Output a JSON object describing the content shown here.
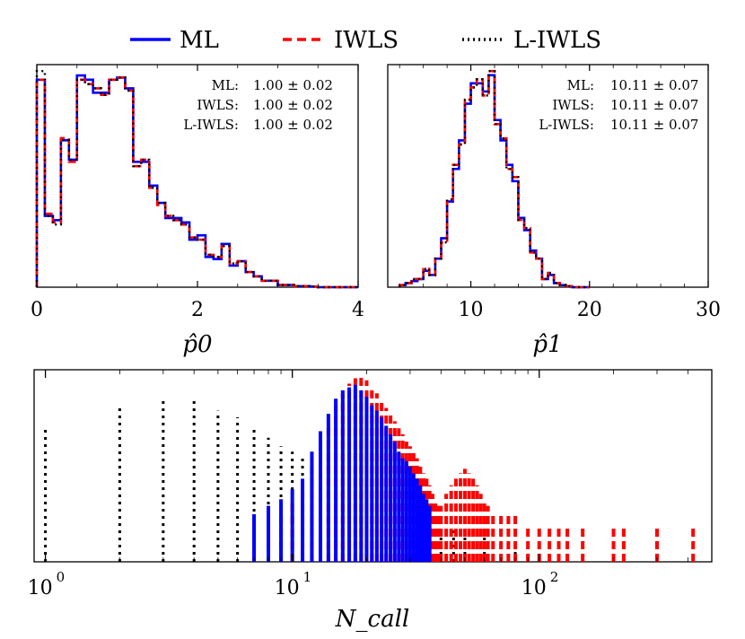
{
  "legend": [
    {
      "name": "ML",
      "color": "#0000ff",
      "dash": "solid"
    },
    {
      "name": "IWLS",
      "color": "#ff0000",
      "dash": "dashed"
    },
    {
      "name": "L-IWLS",
      "color": "#000000",
      "dash": "dotted"
    }
  ],
  "chart_data": [
    {
      "type": "histogram",
      "xlabel": "p̂0",
      "xlim": [
        0,
        4
      ],
      "xticks": [
        "0",
        "2",
        "4"
      ],
      "xtick_values": [
        0,
        2,
        4
      ],
      "stats": [
        {
          "label": "ML:",
          "value": "1.00 ± 0.02"
        },
        {
          "label": "IWLS:",
          "value": "1.00 ± 0.02"
        },
        {
          "label": "L-IWLS:",
          "value": "1.00 ± 0.02"
        }
      ],
      "bin_width": 0.1,
      "series": [
        {
          "name": "ML",
          "values": [
            96,
            33,
            31,
            68,
            59,
            98,
            96,
            90,
            90,
            96,
            97,
            92,
            58,
            58,
            47,
            39,
            32,
            32,
            30,
            22,
            24,
            14,
            13,
            20,
            10,
            12,
            7,
            5,
            3,
            3,
            1,
            1,
            0.5,
            0.5,
            0.3,
            0,
            0,
            0,
            0,
            0
          ]
        },
        {
          "name": "IWLS",
          "values": [
            96,
            34,
            30,
            69,
            58,
            96,
            94,
            92,
            89,
            96,
            97,
            91,
            56,
            59,
            46,
            38,
            33,
            31,
            29,
            23,
            22,
            15,
            14,
            19,
            11,
            12,
            7,
            5,
            3,
            3,
            1,
            1,
            0.5,
            0.5,
            0.3,
            0,
            0,
            0,
            0,
            0
          ]
        },
        {
          "name": "L-IWLS",
          "values": [
            100,
            33,
            29,
            68,
            59,
            96,
            94,
            92,
            89,
            96,
            97,
            91,
            56,
            59,
            46,
            39,
            33,
            31,
            29,
            23,
            22,
            15,
            14,
            19,
            11,
            12,
            7,
            5,
            3,
            3,
            1,
            1,
            0.5,
            0.5,
            0.3,
            0,
            0,
            0,
            0,
            0
          ]
        }
      ]
    },
    {
      "type": "histogram",
      "xlabel": "p̂1",
      "xlim": [
        3,
        30
      ],
      "xticks": [
        "10",
        "20",
        "30"
      ],
      "xtick_values": [
        10,
        20,
        30
      ],
      "stats": [
        {
          "label": "ML:",
          "value": "10.11 ± 0.07"
        },
        {
          "label": "IWLS:",
          "value": "10.11 ± 0.07"
        },
        {
          "label": "L-IWLS:",
          "value": "10.11 ± 0.07"
        }
      ],
      "bin_start": 4,
      "bin_width": 0.5,
      "series": [
        {
          "name": "ML",
          "values": [
            1,
            2,
            3,
            4,
            8,
            6,
            14,
            24,
            42,
            58,
            72,
            90,
            100,
            100,
            96,
            104,
            82,
            72,
            60,
            52,
            34,
            28,
            18,
            14,
            4,
            6,
            2,
            1,
            0.5,
            0,
            0,
            0
          ]
        },
        {
          "name": "IWLS",
          "values": [
            1,
            2,
            4,
            4,
            9,
            6,
            14,
            22,
            43,
            60,
            70,
            92,
            98,
            102,
            94,
            106,
            80,
            73,
            58,
            54,
            33,
            29,
            17,
            14,
            4,
            7,
            2,
            1,
            0.5,
            0,
            0,
            0
          ]
        },
        {
          "name": "L-IWLS",
          "values": [
            1,
            2,
            4,
            4,
            9,
            6,
            14,
            22,
            43,
            60,
            70,
            92,
            98,
            102,
            94,
            106,
            80,
            73,
            58,
            54,
            33,
            29,
            17,
            14,
            4,
            7,
            2,
            1,
            0.5,
            0,
            0,
            0
          ]
        }
      ]
    },
    {
      "type": "bar",
      "xlabel": "N_call",
      "xscale": "log",
      "xlim": [
        0.9,
        500
      ],
      "yscale": "log",
      "xticks": [
        "10^0",
        "10^1",
        "10^2"
      ],
      "xtick_values": [
        1,
        10,
        100
      ],
      "series": [
        {
          "name": "ML",
          "x": [
            7,
            8,
            9,
            10,
            11,
            12,
            13,
            14,
            15,
            16,
            17,
            18,
            19,
            20,
            21,
            22,
            23,
            24,
            25,
            26,
            27,
            28,
            29,
            30,
            31,
            32,
            33,
            34,
            35,
            36
          ],
          "values": [
            3,
            4,
            5,
            7,
            10,
            25,
            50,
            90,
            150,
            200,
            220,
            240,
            200,
            160,
            120,
            100,
            80,
            60,
            45,
            35,
            25,
            20,
            18,
            15,
            12,
            10,
            8,
            6,
            5,
            4
          ]
        },
        {
          "name": "IWLS",
          "x": [
            9,
            10,
            11,
            12,
            13,
            14,
            15,
            16,
            17,
            18,
            19,
            20,
            21,
            22,
            23,
            24,
            25,
            26,
            27,
            28,
            29,
            30,
            31,
            32,
            33,
            34,
            35,
            36,
            37,
            38,
            39,
            40,
            42,
            44,
            46,
            48,
            50,
            52,
            54,
            56,
            58,
            60,
            62,
            65,
            70,
            75,
            80,
            90,
            100,
            110,
            120,
            130,
            150,
            200,
            220,
            300,
            420
          ],
          "values": [
            3,
            5,
            8,
            15,
            30,
            60,
            120,
            180,
            250,
            300,
            320,
            280,
            230,
            180,
            140,
            110,
            90,
            70,
            55,
            45,
            35,
            30,
            25,
            20,
            15,
            12,
            10,
            8,
            6,
            5,
            4,
            4,
            6,
            8,
            10,
            12,
            14,
            12,
            10,
            8,
            6,
            5,
            4,
            3,
            3,
            3,
            3,
            2,
            2,
            2,
            2,
            2,
            2,
            2,
            2,
            2,
            2
          ]
        },
        {
          "name": "L-IWLS",
          "x": [
            1,
            2,
            3,
            4,
            5,
            6,
            7,
            8,
            9,
            10,
            11,
            12,
            13,
            14,
            15,
            16,
            17,
            18,
            19,
            20,
            22,
            24,
            26,
            28,
            30,
            33,
            36,
            40,
            45,
            50,
            60,
            80
          ],
          "values": [
            60,
            120,
            140,
            140,
            100,
            80,
            60,
            40,
            30,
            25,
            20,
            18,
            16,
            14,
            12,
            10,
            9,
            8,
            7,
            6,
            5,
            5,
            4,
            4,
            3,
            3,
            3,
            2,
            2,
            2,
            2,
            1
          ]
        }
      ]
    }
  ]
}
